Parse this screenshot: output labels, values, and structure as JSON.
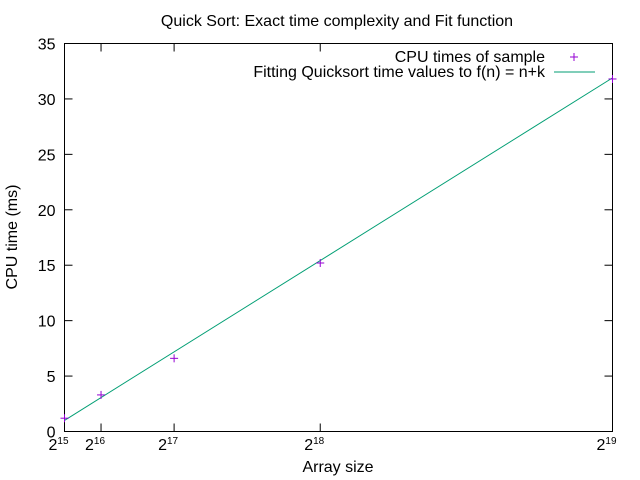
{
  "chart_data": {
    "type": "scatter",
    "title": "Quick Sort: Exact time complexity and Fit function",
    "xlabel": "Array size",
    "ylabel": "CPU time (ms)",
    "xlim": [
      32768,
      524288
    ],
    "ylim": [
      0,
      35
    ],
    "y_ticks": [
      0,
      5,
      10,
      15,
      20,
      25,
      30,
      35
    ],
    "x_ticks": [
      {
        "value": 32768,
        "base": "2",
        "exp": "15"
      },
      {
        "value": 65536,
        "base": "2",
        "exp": "16"
      },
      {
        "value": 131072,
        "base": "2",
        "exp": "17"
      },
      {
        "value": 262144,
        "base": "2",
        "exp": "18"
      },
      {
        "value": 524288,
        "base": "2",
        "exp": "19"
      }
    ],
    "legend_position": "top-right",
    "grid": false,
    "series": [
      {
        "name": "CPU times of sample",
        "kind": "points",
        "marker": "plus",
        "color": "#9400d3",
        "x": [
          32768,
          65536,
          131072,
          262144,
          524288
        ],
        "y": [
          1.2,
          3.3,
          6.6,
          15.2,
          31.8
        ]
      },
      {
        "name": "Fitting Quicksort time values to f(n) = n+k",
        "kind": "line",
        "color": "#009e73",
        "x": [
          32768,
          524288
        ],
        "y": [
          1.0,
          31.9
        ]
      }
    ]
  }
}
